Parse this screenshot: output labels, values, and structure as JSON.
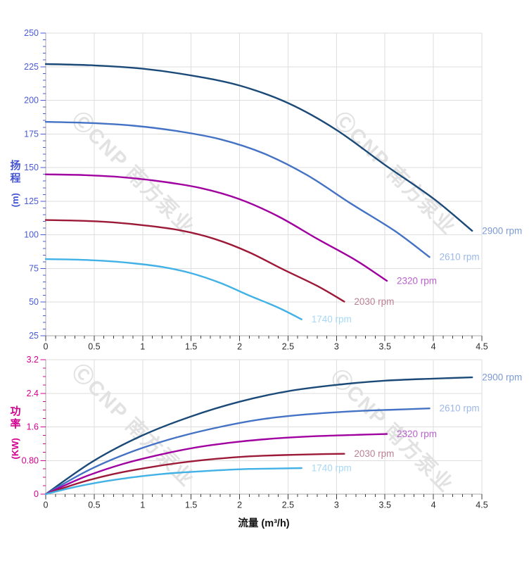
{
  "watermark": {
    "text": "ⒸCNP 南方泵业"
  },
  "chart_data": [
    {
      "type": "line",
      "name": "head-vs-flow",
      "title": "",
      "xlabel": "",
      "ylabel": "扬程 (m)",
      "ylabel_chars": [
        "扬",
        "程"
      ],
      "ylabel_unit": "(m)",
      "axis_color": "#4a5bd6",
      "x_tick_color": "#3c3c3c",
      "grid": true,
      "legend_position": "at-curve-end",
      "xlim": [
        0,
        4.5
      ],
      "ylim": [
        25,
        250
      ],
      "xticks": {
        "values": [
          0,
          0.5,
          1,
          1.5,
          2,
          2.5,
          3,
          3.5,
          4,
          4.5
        ],
        "labels": [
          "0",
          "0.5",
          "1",
          "1.5",
          "2",
          "2.5",
          "3",
          "3.5",
          "4",
          "4.5"
        ]
      },
      "yticks": {
        "values": [
          25,
          50,
          75,
          100,
          125,
          150,
          175,
          200,
          225,
          250
        ],
        "labels": [
          "25",
          "50",
          "75",
          "100",
          "125",
          "150",
          "175",
          "200",
          "225",
          "250"
        ]
      },
      "x_minor_step": 0.1,
      "y_minor_step": 5,
      "series": [
        {
          "name": "2900 rpm",
          "color": "#1c4a78",
          "label_color": "#7d9bd0",
          "points": [
            [
              0,
              227
            ],
            [
              0.5,
              226
            ],
            [
              1,
              223.5
            ],
            [
              1.5,
              218.5
            ],
            [
              2,
              211
            ],
            [
              2.5,
              198
            ],
            [
              3,
              178
            ],
            [
              3.5,
              152
            ],
            [
              4,
              127
            ],
            [
              4.4,
              103
            ]
          ]
        },
        {
          "name": "2610 rpm",
          "color": "#4472c4",
          "label_color": "#9cb8e8",
          "points": [
            [
              0,
              184
            ],
            [
              0.45,
              183.2
            ],
            [
              0.9,
              181.2
            ],
            [
              1.35,
              177.2
            ],
            [
              1.8,
              171.1
            ],
            [
              2.25,
              160.5
            ],
            [
              2.7,
              144.3
            ],
            [
              3.15,
              123.2
            ],
            [
              3.6,
              103
            ],
            [
              3.96,
              83.5
            ]
          ]
        },
        {
          "name": "2320 rpm",
          "color": "#a000a0",
          "label_color": "#b862cc",
          "points": [
            [
              0,
              145
            ],
            [
              0.4,
              144.4
            ],
            [
              0.8,
              142.8
            ],
            [
              1.2,
              139.6
            ],
            [
              1.6,
              134.8
            ],
            [
              2,
              126.5
            ],
            [
              2.4,
              113.7
            ],
            [
              2.8,
              97.1
            ],
            [
              3.2,
              81.1
            ],
            [
              3.52,
              65.8
            ]
          ]
        },
        {
          "name": "2030 rpm",
          "color": "#9c1a38",
          "label_color": "#bb8095",
          "points": [
            [
              0,
              111
            ],
            [
              0.35,
              110.5
            ],
            [
              0.7,
              109.3
            ],
            [
              1.05,
              106.8
            ],
            [
              1.4,
              103.2
            ],
            [
              1.75,
              96.8
            ],
            [
              2.1,
              87
            ],
            [
              2.45,
              74.3
            ],
            [
              2.8,
              62.1
            ],
            [
              3.08,
              50.4
            ]
          ]
        },
        {
          "name": "1740 rpm",
          "color": "#41b1e6",
          "label_color": "#a6d8f6",
          "points": [
            [
              0,
              82
            ],
            [
              0.3,
              81.6
            ],
            [
              0.6,
              80.7
            ],
            [
              0.9,
              78.9
            ],
            [
              1.2,
              76.2
            ],
            [
              1.5,
              71.5
            ],
            [
              1.8,
              64.3
            ],
            [
              2.1,
              54.9
            ],
            [
              2.4,
              45.9
            ],
            [
              2.64,
              37.2
            ]
          ]
        }
      ]
    },
    {
      "type": "line",
      "name": "power-vs-flow",
      "title": "",
      "xlabel": "流量 (m³/h)",
      "ylabel": "功率 (KW)",
      "ylabel_chars": [
        "功",
        "率"
      ],
      "ylabel_unit": "(KW)",
      "axis_color": "#d4008f",
      "x_tick_color": "#3c3c3c",
      "grid": true,
      "legend_position": "at-curve-end",
      "xlim": [
        0,
        4.5
      ],
      "ylim": [
        0,
        3.2
      ],
      "xticks": {
        "values": [
          0,
          0.5,
          1,
          1.5,
          2,
          2.5,
          3,
          3.5,
          4,
          4.5
        ],
        "labels": [
          "0",
          "0.5",
          "1",
          "1.5",
          "2",
          "2.5",
          "3",
          "3.5",
          "4",
          "4.5"
        ]
      },
      "yticks": {
        "values": [
          0,
          0.8,
          1.6,
          2.4,
          3.2
        ],
        "labels": [
          "0",
          "0.80",
          "1.6",
          "2.4",
          "3.2"
        ]
      },
      "x_minor_step": 0.1,
      "y_minor_step": 0.2,
      "series": [
        {
          "name": "2900 rpm",
          "color": "#1c4a78",
          "label_color": "#7d9bd0",
          "points": [
            [
              0,
              0
            ],
            [
              0.5,
              0.8
            ],
            [
              1,
              1.4
            ],
            [
              1.5,
              1.85
            ],
            [
              2,
              2.2
            ],
            [
              2.5,
              2.45
            ],
            [
              3,
              2.6
            ],
            [
              3.5,
              2.7
            ],
            [
              4,
              2.75
            ],
            [
              4.4,
              2.78
            ]
          ]
        },
        {
          "name": "2610 rpm",
          "color": "#4472c4",
          "label_color": "#9cb8e8",
          "points": [
            [
              0,
              0
            ],
            [
              0.45,
              0.58
            ],
            [
              0.9,
              1.02
            ],
            [
              1.35,
              1.35
            ],
            [
              1.8,
              1.6
            ],
            [
              2.25,
              1.79
            ],
            [
              2.7,
              1.9
            ],
            [
              3.15,
              1.97
            ],
            [
              3.6,
              2.01
            ],
            [
              3.96,
              2.04
            ]
          ]
        },
        {
          "name": "2320 rpm",
          "color": "#a000a0",
          "label_color": "#b862cc",
          "points": [
            [
              0,
              0
            ],
            [
              0.4,
              0.41
            ],
            [
              0.8,
              0.72
            ],
            [
              1.2,
              0.95
            ],
            [
              1.6,
              1.13
            ],
            [
              2,
              1.25
            ],
            [
              2.4,
              1.33
            ],
            [
              2.8,
              1.38
            ],
            [
              3.2,
              1.41
            ],
            [
              3.52,
              1.43
            ]
          ]
        },
        {
          "name": "2030 rpm",
          "color": "#9c1a38",
          "label_color": "#bb8095",
          "points": [
            [
              0,
              0
            ],
            [
              0.35,
              0.27
            ],
            [
              0.7,
              0.48
            ],
            [
              1.05,
              0.63
            ],
            [
              1.4,
              0.75
            ],
            [
              1.75,
              0.84
            ],
            [
              2.1,
              0.9
            ],
            [
              2.45,
              0.93
            ],
            [
              2.8,
              0.95
            ],
            [
              3.08,
              0.96
            ]
          ]
        },
        {
          "name": "1740 rpm",
          "color": "#41b1e6",
          "label_color": "#a6d8f6",
          "points": [
            [
              0,
              0
            ],
            [
              0.3,
              0.17
            ],
            [
              0.6,
              0.3
            ],
            [
              0.9,
              0.4
            ],
            [
              1.2,
              0.48
            ],
            [
              1.5,
              0.53
            ],
            [
              1.8,
              0.57
            ],
            [
              2.1,
              0.6
            ],
            [
              2.4,
              0.61
            ],
            [
              2.64,
              0.62
            ]
          ]
        }
      ]
    }
  ]
}
